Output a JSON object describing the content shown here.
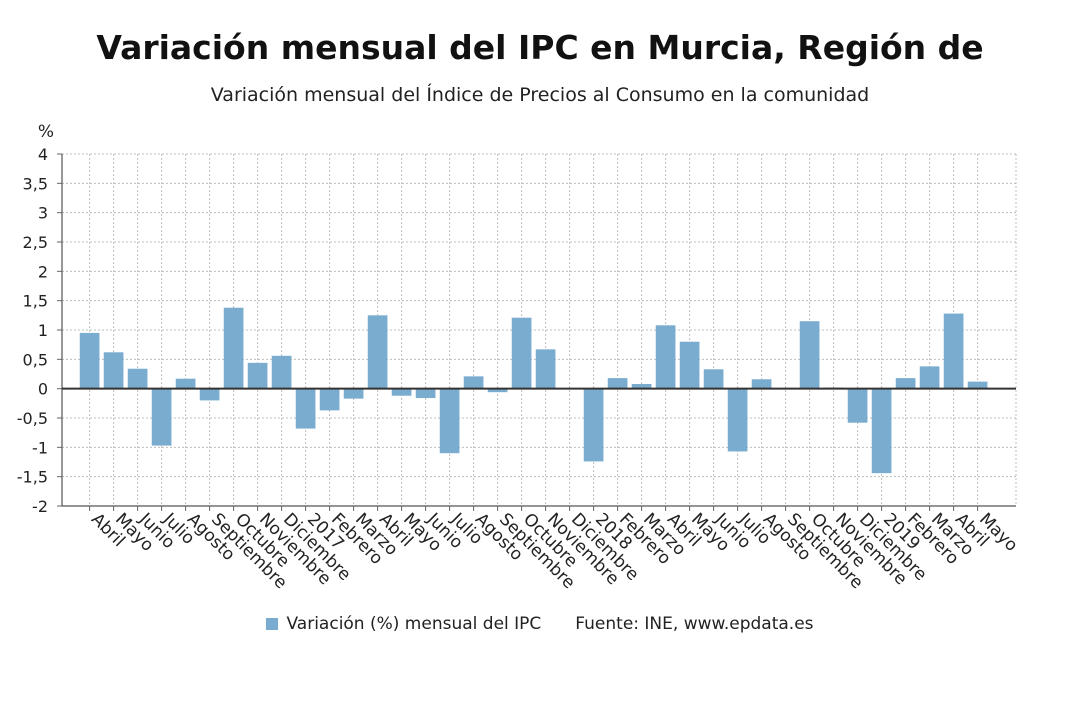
{
  "chart_data": {
    "type": "bar",
    "title": "Variación mensual del IPC en Murcia, Región de",
    "subtitle": "Variación mensual del Índice de Precios al Consumo en la comunidad",
    "ylabel": "%",
    "ylim": [
      -2,
      4
    ],
    "yticks": [
      "-2",
      "-1,5",
      "-1",
      "-0,5",
      "0",
      "0,5",
      "1",
      "1,5",
      "2",
      "2,5",
      "3",
      "3,5",
      "4"
    ],
    "ytick_values": [
      -2,
      -1.5,
      -1,
      -0.5,
      0,
      0.5,
      1,
      1.5,
      2,
      2.5,
      3,
      3.5,
      4
    ],
    "grid": true,
    "categories": [
      "Abril",
      "Mayo",
      "Junio",
      "Julio",
      "Agosto",
      "Septiembre",
      "Octubre",
      "Noviembre",
      "Diciembre",
      "2017",
      "Febrero",
      "Marzo",
      "Abril",
      "Mayo",
      "Junio",
      "Julio",
      "Agosto",
      "Septiembre",
      "Octubre",
      "Noviembre",
      "Diciembre",
      "2018",
      "Febrero",
      "Marzo",
      "Abril",
      "Mayo",
      "Junio",
      "Julio",
      "Agosto",
      "Septiembre",
      "Octubre",
      "Noviembre",
      "Diciembre",
      "2019",
      "Febrero",
      "Marzo",
      "Abril",
      "Mayo"
    ],
    "series": [
      {
        "name": "Variación (%) mensual del IPC",
        "color": "#7aaccf",
        "values": [
          0.95,
          0.62,
          0.34,
          -0.97,
          0.17,
          -0.2,
          1.38,
          0.44,
          0.56,
          -0.68,
          -0.37,
          -0.17,
          1.25,
          -0.12,
          -0.16,
          -1.1,
          0.21,
          -0.06,
          1.21,
          0.67,
          0.01,
          -1.24,
          0.18,
          0.08,
          1.08,
          0.8,
          0.33,
          -1.07,
          0.16,
          0.01,
          1.15,
          0.02,
          -0.58,
          -1.44,
          0.18,
          0.38,
          1.28,
          0.12
        ]
      }
    ],
    "legend_position": "bottom"
  },
  "legend": {
    "series_label": "Variación (%) mensual del IPC",
    "source": "Fuente: INE, www.epdata.es"
  }
}
